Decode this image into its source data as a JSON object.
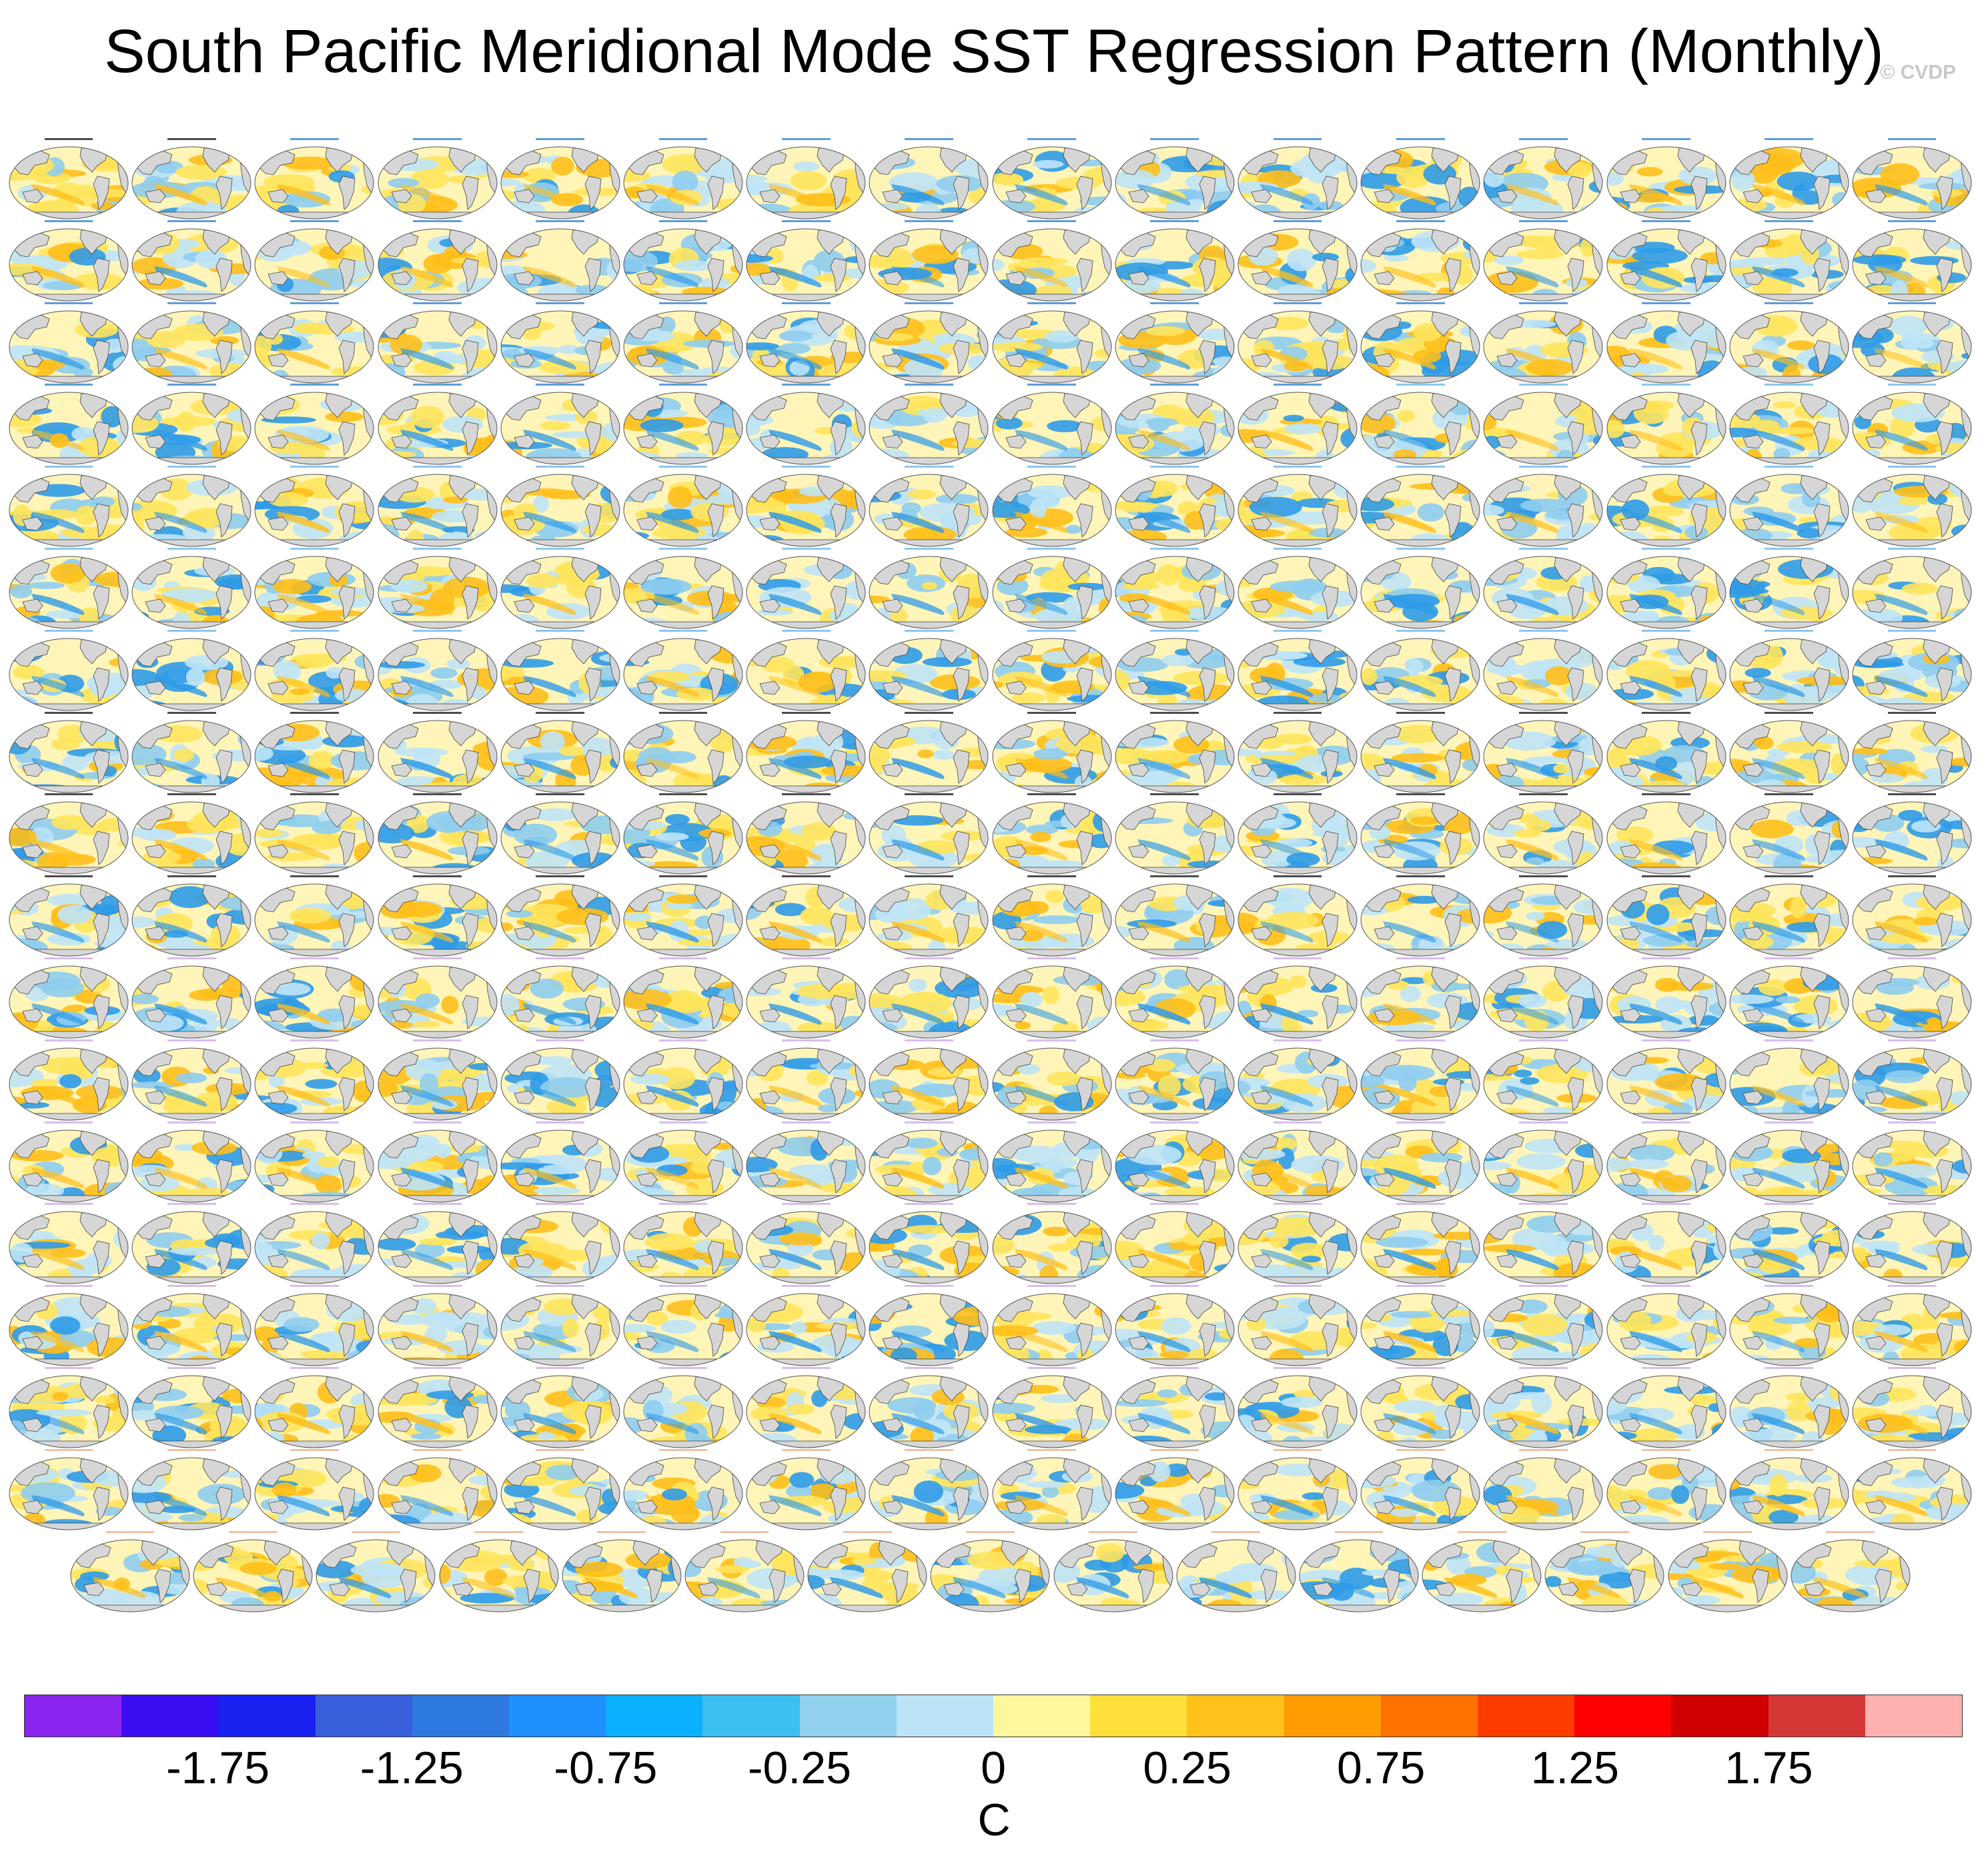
{
  "title": "South Pacific Meridional Mode SST Regression Pattern (Monthly)",
  "credit": "© CVDP",
  "grid": {
    "rows": 18,
    "columns": 16,
    "last_row_count": 15,
    "panel_count": 287,
    "panels_text_legible": false,
    "label_colors": [
      "#000000",
      "#1a73c9",
      "#5aaee8",
      "#7b5cd6",
      "#c8a0e8",
      "#e8a87c"
    ]
  },
  "colorbar": {
    "units": "C",
    "tick_labels": [
      "-1.75",
      "-1.25",
      "-0.75",
      "-0.25",
      "0",
      "0.25",
      "0.75",
      "1.25",
      "1.75"
    ],
    "colors": [
      "#8b24ee",
      "#3b0cf2",
      "#1a22f2",
      "#3a5fdc",
      "#2f7ae0",
      "#1e90ff",
      "#0bb0ff",
      "#3cc0f2",
      "#92d2ee",
      "#bde3f6",
      "#fff79e",
      "#ffdf3a",
      "#ffc21a",
      "#ff9c00",
      "#ff7200",
      "#ff3c00",
      "#ff0000",
      "#d00000",
      "#d63838",
      "#ffb0b0"
    ]
  },
  "map_style": {
    "land": "#d6d6d6",
    "coast": "#444444",
    "ocean_base": "#fff5b8",
    "pos_weak": "#ffe45c",
    "pos_strong": "#ffbf1a",
    "neg_weak": "#bfe4f7",
    "neg_mid": "#8fcdf0",
    "neg_strong": "#2f9be8"
  }
}
